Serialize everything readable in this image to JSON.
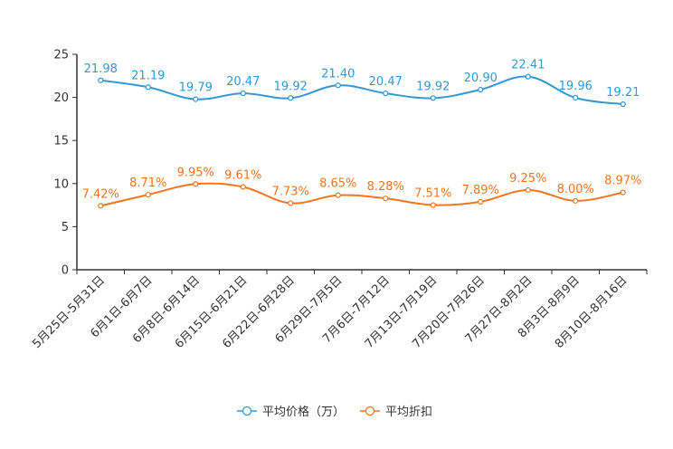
{
  "chart_data": {
    "type": "line",
    "title": "",
    "xlabel": "",
    "ylabel": "",
    "ylim": [
      0,
      25
    ],
    "yticks": [
      0,
      5,
      10,
      15,
      20,
      25
    ],
    "grid": false,
    "legend_position": "bottom-center",
    "categories": [
      "5月25日-5月31日",
      "6月1日-6月7日",
      "6月8日-6月14日",
      "6月15日-6月21日",
      "6月22日-6月28日",
      "6月29日-7月5日",
      "7月6日-7月12日",
      "7月13日-7月19日",
      "7月20日-7月26日",
      "7月27日-8月2日",
      "8月3日-8月9日",
      "8月10日-8月16日"
    ],
    "series": [
      {
        "name": "平均价格（万）",
        "color": "#3398d5",
        "values": [
          21.98,
          21.19,
          19.79,
          20.47,
          19.92,
          21.4,
          20.47,
          19.92,
          20.9,
          22.41,
          19.96,
          19.21
        ],
        "labels": [
          "21.98",
          "21.19",
          "19.79",
          "20.47",
          "19.92",
          "21.40",
          "20.47",
          "19.92",
          "20.90",
          "22.41",
          "19.96",
          "19.21"
        ]
      },
      {
        "name": "平均折扣",
        "color": "#f3761f",
        "values": [
          7.42,
          8.71,
          9.95,
          9.61,
          7.73,
          8.65,
          8.28,
          7.51,
          7.89,
          9.25,
          8.0,
          8.97
        ],
        "labels": [
          "7.42%",
          "8.71%",
          "9.95%",
          "9.61%",
          "7.73%",
          "8.65%",
          "8.28%",
          "7.51%",
          "7.89%",
          "9.25%",
          "8.00%",
          "8.97%"
        ]
      }
    ]
  }
}
